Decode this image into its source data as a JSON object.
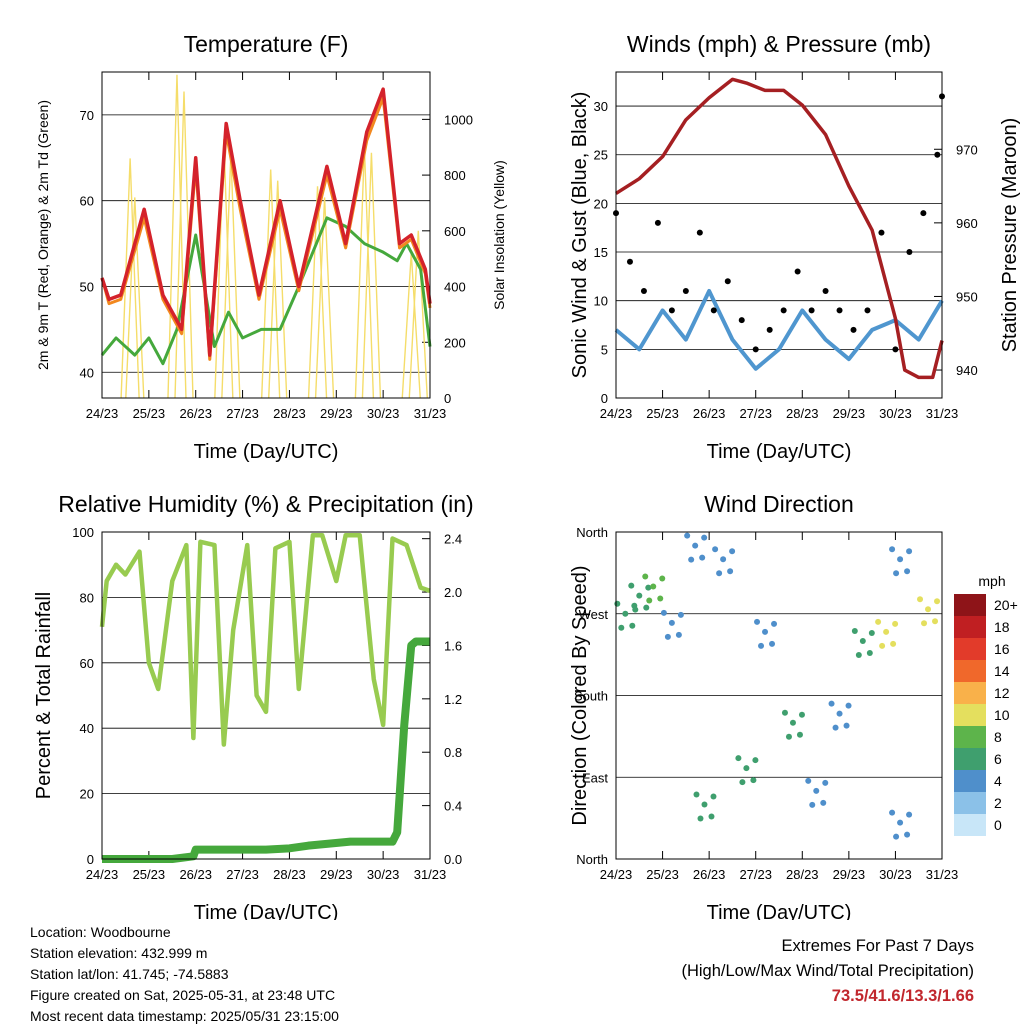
{
  "x_ticks": [
    "24/23",
    "25/23",
    "26/23",
    "27/23",
    "28/23",
    "29/23",
    "30/23",
    "31/23"
  ],
  "colors": {
    "temp_2m": "#d4222b",
    "temp_9m": "#f2881f",
    "dewpoint": "#45a83c",
    "solar": "#f5dd6a",
    "wind": "#4f96cf",
    "gust": "#000000",
    "pressure": "#a51f22",
    "rh": "#98cb50",
    "precip": "#45a83c"
  },
  "chart_data": [
    {
      "type": "line",
      "title": "Temperature (F)",
      "xlabel": "Time (Day/UTC)",
      "ylabel": "2m & 9m T (Red, Orange) & 2m Td (Green)",
      "y2label": "Solar Insolation (Yellow)",
      "ylim": [
        37,
        75
      ],
      "y_ticks": [
        40,
        50,
        60,
        70
      ],
      "y2lim": [
        0,
        1170
      ],
      "y2_ticks": [
        0,
        200,
        400,
        600,
        800,
        1000
      ],
      "grid": true,
      "series": [
        {
          "axis": "left",
          "color": "#d4222b",
          "x": [
            0,
            0.15,
            0.4,
            0.9,
            1.3,
            1.7,
            2.0,
            2.3,
            2.65,
            2.95,
            3.35,
            3.8,
            4.2,
            4.8,
            5.2,
            5.65,
            6.0,
            6.35,
            6.6,
            6.9,
            7.0
          ],
          "values": [
            51,
            48.5,
            49,
            59,
            49,
            45,
            65,
            42,
            69,
            60,
            49,
            60,
            50,
            64,
            55,
            68,
            73,
            55,
            56,
            52,
            48
          ]
        },
        {
          "axis": "left",
          "color": "#f2881f",
          "x": [
            0,
            0.15,
            0.4,
            0.9,
            1.3,
            1.7,
            2.0,
            2.3,
            2.65,
            2.95,
            3.35,
            3.8,
            4.2,
            4.8,
            5.2,
            5.65,
            6.0,
            6.35,
            6.6,
            6.9,
            7.0
          ],
          "values": [
            51,
            48,
            48.5,
            58,
            48.5,
            44.5,
            64,
            41.5,
            68,
            59,
            48.5,
            59,
            49.5,
            63,
            54.5,
            67,
            72,
            54.5,
            55.5,
            51.5,
            47.5
          ]
        },
        {
          "axis": "left",
          "color": "#45a83c",
          "x": [
            0,
            0.3,
            0.7,
            1.0,
            1.3,
            1.6,
            2.0,
            2.4,
            2.7,
            3.0,
            3.4,
            3.8,
            4.2,
            4.5,
            4.8,
            5.2,
            5.6,
            6.0,
            6.3,
            6.5,
            6.8,
            7.0
          ],
          "values": [
            42,
            44,
            42,
            44,
            41,
            45,
            56,
            43,
            47,
            44,
            45,
            45,
            50,
            54,
            58,
            57,
            55,
            54,
            53,
            55,
            52,
            43
          ]
        },
        {
          "axis": "right",
          "color": "#f5dd6a",
          "x": [
            0.6,
            0.7,
            1.6,
            1.75,
            2.6,
            2.75,
            3.6,
            3.75,
            4.6,
            4.75,
            5.6,
            5.75,
            6.6,
            6.75
          ],
          "values": [
            860,
            720,
            1160,
            1100,
            930,
            880,
            820,
            780,
            760,
            720,
            900,
            880,
            520,
            600
          ]
        }
      ]
    },
    {
      "type": "line",
      "title": "Winds (mph) & Pressure (mb)",
      "xlabel": "Time (Day/UTC)",
      "ylabel": "Sonic Wind & Gust (Blue, Black)",
      "y2label": "Station Pressure (Maroon)",
      "ylim": [
        0,
        33.5
      ],
      "y_ticks": [
        0,
        5,
        10,
        15,
        20,
        25,
        30
      ],
      "y2lim": [
        936.2,
        980.5
      ],
      "y2_ticks": [
        940,
        950,
        960,
        970
      ],
      "grid": true,
      "series": [
        {
          "axis": "left",
          "color": "#4f96cf",
          "x": [
            0,
            0.5,
            1.0,
            1.5,
            2.0,
            2.5,
            3.0,
            3.5,
            4.0,
            4.5,
            5.0,
            5.5,
            6.0,
            6.5,
            7.0
          ],
          "values": [
            7,
            5,
            9,
            6,
            11,
            6,
            3,
            5,
            9,
            6,
            4,
            7,
            8,
            6,
            10
          ]
        },
        {
          "axis": "left",
          "color": "#000000",
          "x": [
            0,
            0.3,
            0.6,
            0.9,
            1.2,
            1.5,
            1.8,
            2.1,
            2.4,
            2.7,
            3.0,
            3.3,
            3.6,
            3.9,
            4.2,
            4.5,
            4.8,
            5.1,
            5.4,
            5.7,
            6.0,
            6.3,
            6.6,
            6.9,
            7.0
          ],
          "values": [
            19,
            14,
            11,
            18,
            9,
            11,
            17,
            9,
            12,
            8,
            5,
            7,
            9,
            13,
            9,
            11,
            9,
            7,
            9,
            17,
            5,
            15,
            19,
            25,
            31
          ]
        },
        {
          "axis": "right",
          "color": "#a51f22",
          "x": [
            0,
            0.5,
            1.0,
            1.5,
            2.0,
            2.5,
            2.8,
            3.2,
            3.6,
            4.0,
            4.5,
            5.0,
            5.5,
            6.0,
            6.2,
            6.5,
            6.8,
            7.0
          ],
          "values": [
            964,
            966,
            969,
            974,
            977,
            979.5,
            979,
            978,
            978,
            976,
            972,
            965,
            959,
            947,
            940,
            939,
            939,
            944
          ]
        }
      ]
    },
    {
      "type": "line",
      "title": "Relative Humidity (%) & Precipitation (in)",
      "xlabel": "Time (Day/UTC)",
      "ylabel": "Percent & Total Rainfall",
      "ylim": [
        0,
        100
      ],
      "y_ticks": [
        0,
        20,
        40,
        60,
        80,
        100
      ],
      "y2lim": [
        0,
        2.45
      ],
      "y2_ticks": [
        0.0,
        0.4,
        0.8,
        1.2,
        1.6,
        2.0,
        2.4
      ],
      "grid": true,
      "series": [
        {
          "axis": "left",
          "color": "#98cb50",
          "x": [
            0,
            0.1,
            0.3,
            0.5,
            0.8,
            1.0,
            1.2,
            1.5,
            1.8,
            1.95,
            2.1,
            2.4,
            2.6,
            2.8,
            3.1,
            3.3,
            3.5,
            3.7,
            4.0,
            4.2,
            4.5,
            4.7,
            5.0,
            5.2,
            5.5,
            5.8,
            6.0,
            6.2,
            6.5,
            6.8,
            7.0
          ],
          "values": [
            71,
            85,
            90,
            87,
            94,
            60,
            52,
            85,
            96,
            37,
            97,
            96,
            35,
            70,
            96,
            50,
            45,
            95,
            97,
            52,
            99,
            99,
            85,
            99,
            99,
            55,
            41,
            98,
            96,
            83,
            82
          ]
        },
        {
          "axis": "right",
          "color": "#45a83c",
          "x": [
            0,
            1.5,
            1.95,
            2.0,
            3.5,
            4.0,
            4.4,
            5.3,
            5.8,
            6.2,
            6.3,
            6.45,
            6.6,
            6.7,
            7.0
          ],
          "values": [
            0.0,
            0.0,
            0.02,
            0.07,
            0.07,
            0.08,
            0.1,
            0.13,
            0.13,
            0.13,
            0.2,
            1.0,
            1.6,
            1.63,
            1.63
          ]
        }
      ]
    },
    {
      "type": "scatter",
      "title": "Wind Direction",
      "xlabel": "Time (Day/UTC)",
      "ylabel": "Direction (Colored By Speed)",
      "y_tick_labels": [
        "North",
        "East",
        "South",
        "West",
        "North"
      ],
      "ylim": [
        0,
        360
      ],
      "legend": {
        "title": "mph",
        "placement": "right",
        "labels": [
          "0",
          "2",
          "4",
          "6",
          "8",
          "10",
          "12",
          "14",
          "16",
          "18",
          "20+"
        ],
        "colors": [
          "#c8e6f8",
          "#8bc1e8",
          "#4f8fcb",
          "#3f9f6e",
          "#5db44b",
          "#e4df5e",
          "#f9b14a",
          "#f0682b",
          "#e23b2a",
          "#c01f22",
          "#8e1418"
        ]
      },
      "grid": true,
      "clusters": [
        {
          "x": 0.2,
          "dir": 270,
          "speed": 6
        },
        {
          "x": 0.5,
          "dir": 290,
          "speed": 5
        },
        {
          "x": 0.8,
          "dir": 300,
          "speed": 7
        },
        {
          "x": 1.2,
          "dir": 260,
          "speed": 4
        },
        {
          "x": 1.7,
          "dir": 345,
          "speed": 4
        },
        {
          "x": 1.9,
          "dir": 60,
          "speed": 6
        },
        {
          "x": 2.3,
          "dir": 330,
          "speed": 3
        },
        {
          "x": 2.8,
          "dir": 100,
          "speed": 5
        },
        {
          "x": 3.2,
          "dir": 250,
          "speed": 3
        },
        {
          "x": 3.8,
          "dir": 150,
          "speed": 6
        },
        {
          "x": 4.3,
          "dir": 75,
          "speed": 4
        },
        {
          "x": 4.8,
          "dir": 160,
          "speed": 4
        },
        {
          "x": 5.3,
          "dir": 240,
          "speed": 5
        },
        {
          "x": 5.8,
          "dir": 250,
          "speed": 9
        },
        {
          "x": 6.1,
          "dir": 330,
          "speed": 4
        },
        {
          "x": 6.7,
          "dir": 275,
          "speed": 10
        },
        {
          "x": 6.1,
          "dir": 40,
          "speed": 3
        }
      ]
    }
  ],
  "info": {
    "location": "Location: Woodbourne",
    "elevation": "Station elevation: 432.999 m",
    "latlon": "Station lat/lon: 41.745; -74.5883",
    "created": "Figure created on Sat, 2025-05-31, at 23:48 UTC",
    "timestamp": "Most recent data timestamp: 2025/05/31 23:15:00"
  },
  "extremes": {
    "line1": "Extremes For Past 7 Days",
    "line2": "(High/Low/Max Wind/Total Precipitation)",
    "values": "73.5/41.6/13.3/1.66"
  }
}
